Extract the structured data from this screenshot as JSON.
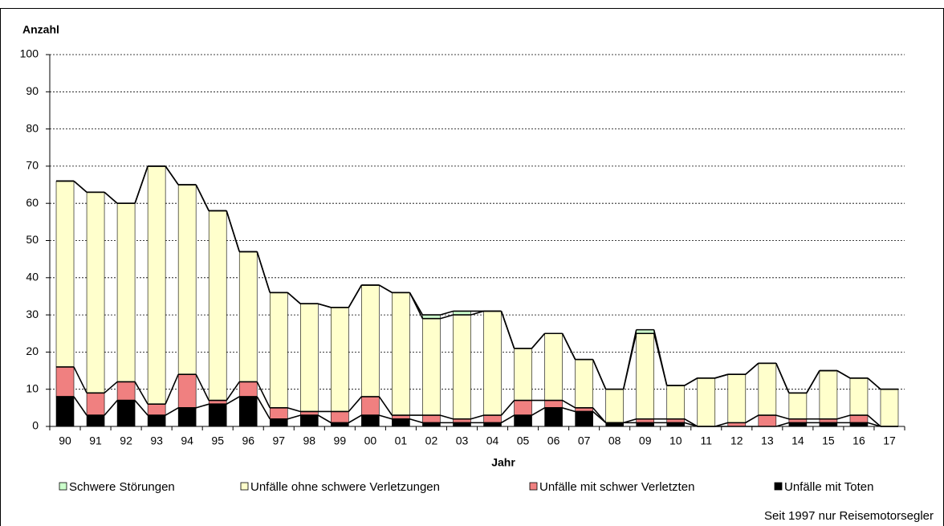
{
  "chart_data": {
    "type": "stacked-bar",
    "y_label": "Anzahl",
    "x_label": "Jahr",
    "note": "Seit 1997 nur Reisemotorsegler",
    "categories": [
      "90",
      "91",
      "92",
      "93",
      "94",
      "95",
      "96",
      "97",
      "98",
      "99",
      "00",
      "01",
      "02",
      "03",
      "04",
      "05",
      "06",
      "07",
      "08",
      "09",
      "10",
      "11",
      "12",
      "13",
      "14",
      "15",
      "16",
      "17"
    ],
    "series": [
      {
        "name": "Schwere Störungen",
        "color": "#ccffcc",
        "values": [
          0,
          0,
          0,
          0,
          0,
          0,
          0,
          0,
          0,
          0,
          0,
          0,
          1,
          1,
          0,
          0,
          0,
          0,
          0,
          1,
          0,
          0,
          0,
          0,
          0,
          0,
          0,
          0
        ]
      },
      {
        "name": "Unfälle ohne schwere Verletzungen",
        "color": "#ffffcc",
        "values": [
          50,
          54,
          48,
          64,
          51,
          51,
          35,
          31,
          29,
          28,
          30,
          33,
          26,
          28,
          28,
          14,
          18,
          13,
          9,
          23,
          9,
          13,
          13,
          14,
          7,
          13,
          10,
          10
        ]
      },
      {
        "name": "Unfälle mit schwer Verletzten",
        "color": "#f08080",
        "values": [
          8,
          6,
          5,
          3,
          9,
          1,
          4,
          3,
          1,
          3,
          5,
          1,
          2,
          1,
          2,
          4,
          2,
          1,
          0,
          1,
          1,
          0,
          1,
          3,
          1,
          1,
          2,
          0
        ]
      },
      {
        "name": "Unfälle mit Toten",
        "color": "#000000",
        "values": [
          8,
          3,
          7,
          3,
          5,
          6,
          8,
          2,
          3,
          1,
          3,
          2,
          1,
          1,
          1,
          3,
          5,
          4,
          1,
          1,
          1,
          0,
          0,
          0,
          1,
          1,
          1,
          0
        ]
      }
    ],
    "ylim": [
      0,
      100
    ],
    "yticks": [
      0,
      10,
      20,
      30,
      40,
      50,
      60,
      70,
      80,
      90,
      100
    ],
    "grid": true
  }
}
